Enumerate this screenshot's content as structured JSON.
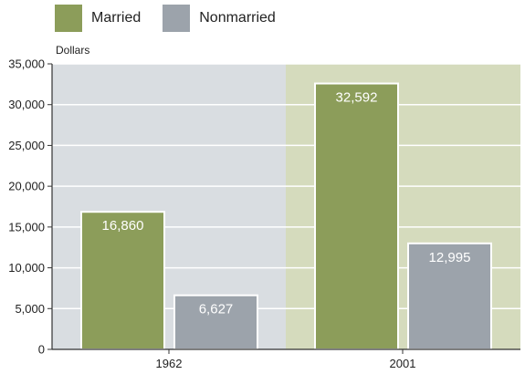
{
  "colors": {
    "married": "#8c9d5a",
    "nonmarried": "#9ca3ab",
    "panel_1962": "#d9dde1",
    "panel_2001": "#d5dbbd",
    "axis": "#333333",
    "label_inside": "#ffffff"
  },
  "chart_data": {
    "type": "bar",
    "categories": [
      "1962",
      "2001"
    ],
    "series": [
      {
        "name": "Married",
        "values": [
          16860,
          32592
        ],
        "labels": [
          "16,860",
          "32,592"
        ]
      },
      {
        "name": "Nonmarried",
        "values": [
          6627,
          12995
        ],
        "labels": [
          "6,627",
          "12,995"
        ]
      }
    ],
    "ylabel": "Dollars",
    "ylim": [
      0,
      35000
    ],
    "yticks": [
      0,
      5000,
      10000,
      15000,
      20000,
      25000,
      30000,
      35000
    ],
    "ytick_labels": [
      "0",
      "5,000",
      "10,000",
      "15,000",
      "20,000",
      "25,000",
      "30,000",
      "35,000"
    ],
    "grid": true,
    "legend_position": "top-left"
  }
}
